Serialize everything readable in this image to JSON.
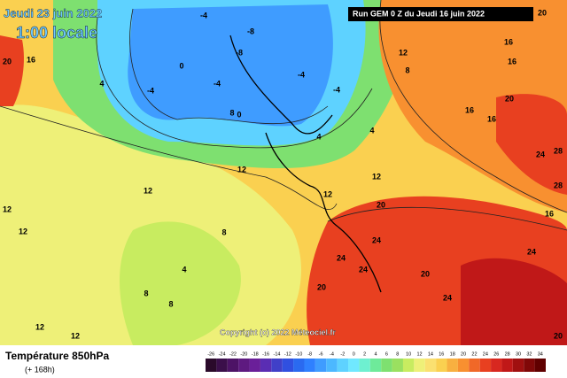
{
  "header": {
    "date": "Jeudi 23 juin 2022",
    "time": "1:00 locale",
    "run": "Run GEM 0 Z du Jeudi 16 juin 2022"
  },
  "footer": {
    "title": "Température 850hPa",
    "lead": "(+ 168h)",
    "copyright": "Copyright (c) 2022 Méteociel.fr"
  },
  "legend": {
    "ticks": [
      -26,
      -24,
      -22,
      -20,
      -18,
      -16,
      -14,
      -12,
      -10,
      -8,
      -6,
      -4,
      -2,
      0,
      2,
      4,
      6,
      8,
      10,
      12,
      14,
      16,
      18,
      20,
      22,
      24,
      26,
      28,
      30,
      32,
      34
    ],
    "colors": [
      "#2a0a2a",
      "#3b0f4a",
      "#4d1366",
      "#5e1a80",
      "#6a1f99",
      "#5a2db3",
      "#4040c8",
      "#3050e0",
      "#2a6af0",
      "#2f80ff",
      "#3f9cff",
      "#4cb8ff",
      "#5ed2ff",
      "#70e8ff",
      "#6ef0d0",
      "#6eea9a",
      "#7ee070",
      "#9ae060",
      "#c8ec60",
      "#eef078",
      "#fae070",
      "#fad050",
      "#f8b040",
      "#f89030",
      "#f06828",
      "#e84020",
      "#d82820",
      "#c01818",
      "#a01010",
      "#800808",
      "#600000"
    ]
  },
  "map": {
    "labels": [
      -4,
      -8,
      -4,
      -8,
      -4,
      -4,
      -4,
      0,
      0,
      4,
      4,
      4,
      8,
      8,
      12,
      12,
      12,
      12,
      12,
      12,
      12,
      8,
      8,
      16,
      20,
      16,
      16,
      20,
      24,
      28,
      28,
      20,
      24,
      24,
      24,
      20,
      20,
      24,
      24,
      20,
      16,
      16,
      20,
      8,
      4,
      12,
      12,
      16
    ]
  }
}
